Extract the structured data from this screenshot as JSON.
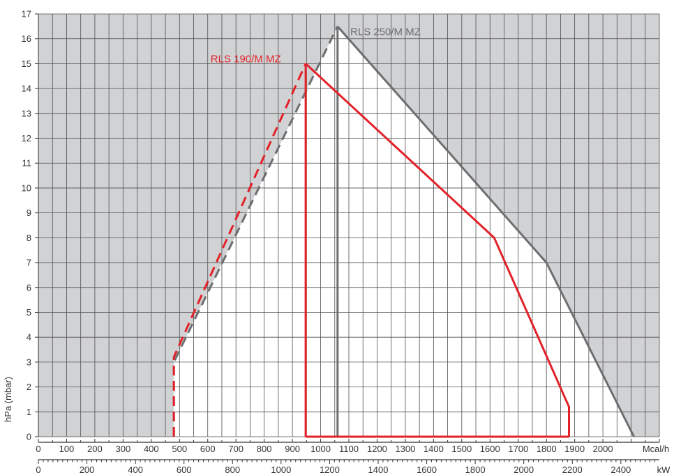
{
  "chart_data": {
    "type": "area",
    "title": "",
    "ylabel": "hPa (mbar)",
    "xlabel": "Mcal/h",
    "x_unit_label": "Mcal/h",
    "x2_unit_label": "kW",
    "xlim": [
      0,
      2200
    ],
    "ylim": [
      0,
      17
    ],
    "grid": true,
    "x_ticks": [
      0,
      100,
      200,
      300,
      400,
      500,
      600,
      700,
      800,
      900,
      1000,
      1100,
      1200,
      1300,
      1400,
      1500,
      1600,
      1700,
      1800,
      1900,
      2000,
      2100,
      2200
    ],
    "x_tick_labels": [
      "0",
      "100",
      "200",
      "300",
      "400",
      "500",
      "600",
      "700",
      "800",
      "900",
      "1000",
      "1100",
      "1200",
      "1300",
      "1400",
      "1500",
      "1600",
      "1700",
      "1800",
      "1900",
      "2000",
      "",
      ""
    ],
    "y_ticks": [
      0,
      1,
      2,
      3,
      4,
      5,
      6,
      7,
      8,
      9,
      10,
      11,
      12,
      13,
      14,
      15,
      16,
      17
    ],
    "x2_ticks": [
      0,
      200,
      400,
      600,
      800,
      1000,
      1200,
      1400,
      1600,
      1800,
      2000,
      2200,
      2400
    ],
    "x2_per_x1": 1.163,
    "colors": {
      "outside": "#d1d2d4",
      "grid": "#4d4d4d",
      "gray_series": "#6d6e70",
      "red_series": "#e32128",
      "axis": "#333333"
    },
    "series": [
      {
        "name": "RLS 250/M MZ",
        "color": "#6d6e70",
        "dashed": [
          [
            480,
            0
          ],
          [
            480,
            3
          ],
          [
            1060,
            16.5
          ]
        ],
        "solid": [
          [
            1060,
            16.5
          ],
          [
            1800,
            7
          ],
          [
            2110,
            0
          ]
        ],
        "stem": [
          [
            1060,
            0
          ],
          [
            1060,
            16.5
          ]
        ],
        "label_at": [
          1105,
          16.15
        ]
      },
      {
        "name": "RLS 190/M MZ",
        "color": "#e32128",
        "dashed": [
          [
            480,
            0
          ],
          [
            480,
            3.2
          ],
          [
            947,
            15
          ]
        ],
        "solid": [
          [
            947,
            15
          ],
          [
            1615,
            8
          ],
          [
            1880,
            1.2
          ],
          [
            1880,
            0
          ]
        ],
        "stem": [
          [
            947,
            0
          ],
          [
            947,
            15
          ]
        ],
        "baseline": [
          [
            947,
            0
          ],
          [
            1880,
            0
          ]
        ],
        "label_at": [
          610,
          15.05
        ]
      }
    ],
    "envelope_white": [
      [
        480,
        0
      ],
      [
        480,
        3
      ],
      [
        1060,
        16.5
      ],
      [
        1800,
        7
      ],
      [
        2110,
        0
      ]
    ]
  }
}
